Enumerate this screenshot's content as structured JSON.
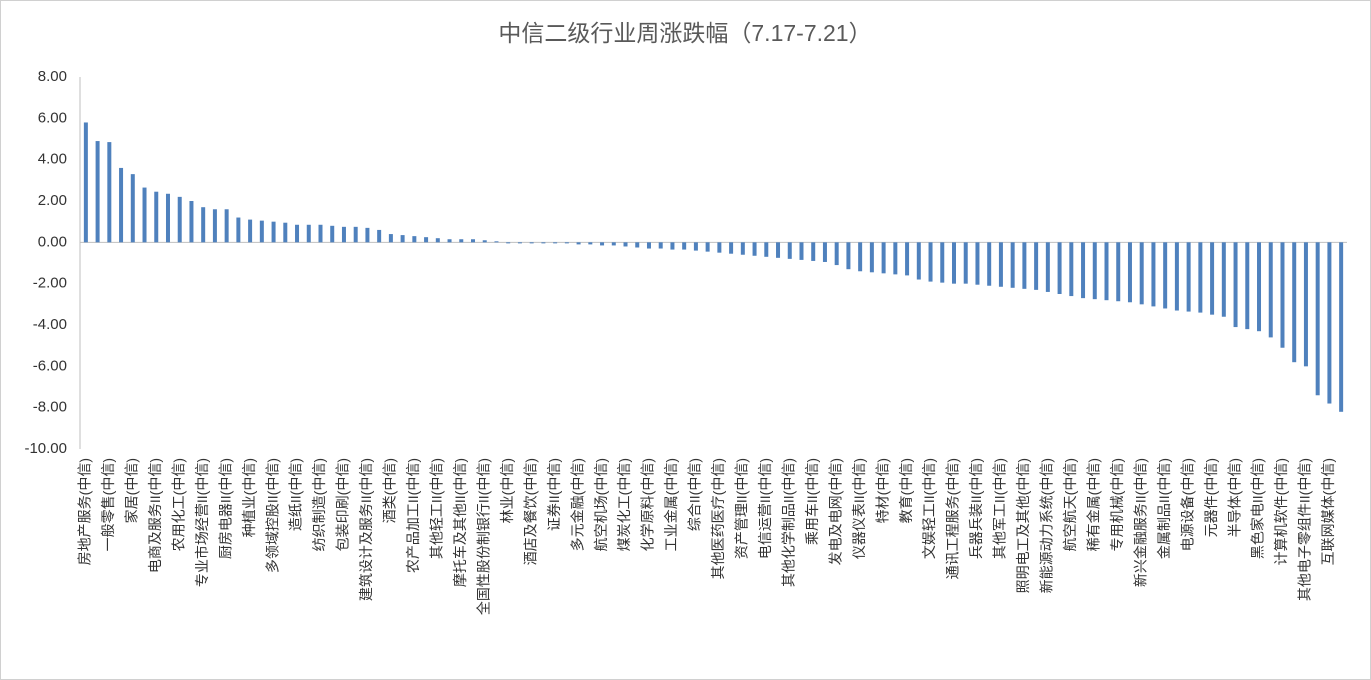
{
  "chart_data": {
    "type": "bar",
    "title": "中信二级行业周涨跌幅（7.17-7.21）",
    "categories": [
      "房地产服务(中信)",
      null,
      "一般零售(中信)",
      null,
      "家居(中信)",
      null,
      "电商及服务II(中信)",
      null,
      "农用化工(中信)",
      null,
      "专业市场经营II(中信)",
      null,
      "厨房电器II(中信)",
      null,
      "种植业(中信)",
      null,
      "多领域控股II(中信)",
      null,
      "造纸II(中信)",
      null,
      "纺织制造(中信)",
      null,
      "包装印刷(中信)",
      null,
      "建筑设计及服务II(中信)",
      null,
      "酒类(中信)",
      null,
      "农产品加工II(中信)",
      null,
      "其他轻工II(中信)",
      null,
      "摩托车及其他II(中信)",
      null,
      "全国性股份制银行II(中信)",
      null,
      "林业(中信)",
      null,
      "酒店及餐饮(中信)",
      null,
      "证券II(中信)",
      null,
      "多元金融(中信)",
      null,
      "航空机场(中信)",
      null,
      "煤炭化工(中信)",
      null,
      "化学原料(中信)",
      null,
      "工业金属(中信)",
      null,
      "综合II(中信)",
      null,
      "其他医药医疗(中信)",
      null,
      "资产管理II(中信)",
      null,
      "电信运营II(中信)",
      null,
      "其他化学制品II(中信)",
      null,
      "乘用车II(中信)",
      null,
      "发电及电网(中信)",
      null,
      "仪器仪表II(中信)",
      null,
      "特材(中信)",
      null,
      "教育(中信)",
      null,
      "文娱轻工II(中信)",
      null,
      "通讯工程服务(中信)",
      null,
      "兵器兵装II(中信)",
      null,
      "其他军工II(中信)",
      null,
      "照明电工及其他(中信)",
      null,
      "新能源动力系统(中信)",
      null,
      "航空航天(中信)",
      null,
      "稀有金属(中信)",
      null,
      "专用机械(中信)",
      null,
      "新兴金融服务II(中信)",
      null,
      "金属制品II(中信)",
      null,
      "电源设备(中信)",
      null,
      "元器件(中信)",
      null,
      "半导体(中信)",
      null,
      "黑色家电II(中信)",
      null,
      "计算机软件(中信)",
      null,
      "其他电子零组件II(中信)",
      null,
      "互联网媒体(中信)",
      null
    ],
    "values": [
      5.8,
      4.9,
      4.85,
      3.6,
      3.3,
      2.65,
      2.45,
      2.35,
      2.2,
      2.0,
      1.7,
      1.6,
      1.6,
      1.2,
      1.1,
      1.05,
      1.0,
      0.95,
      0.85,
      0.85,
      0.85,
      0.8,
      0.75,
      0.75,
      0.7,
      0.6,
      0.4,
      0.35,
      0.3,
      0.25,
      0.2,
      0.15,
      0.15,
      0.15,
      0.1,
      0.05,
      -0.05,
      -0.05,
      -0.05,
      -0.05,
      -0.05,
      -0.05,
      -0.1,
      -0.1,
      -0.15,
      -0.15,
      -0.2,
      -0.25,
      -0.3,
      -0.3,
      -0.35,
      -0.35,
      -0.4,
      -0.45,
      -0.5,
      -0.55,
      -0.6,
      -0.65,
      -0.7,
      -0.75,
      -0.8,
      -0.85,
      -0.9,
      -0.95,
      -1.1,
      -1.3,
      -1.4,
      -1.45,
      -1.5,
      -1.55,
      -1.6,
      -1.8,
      -1.9,
      -1.95,
      -2.0,
      -2.0,
      -2.05,
      -2.1,
      -2.15,
      -2.2,
      -2.25,
      -2.3,
      -2.4,
      -2.5,
      -2.6,
      -2.7,
      -2.75,
      -2.8,
      -2.85,
      -2.9,
      -3.0,
      -3.1,
      -3.2,
      -3.3,
      -3.35,
      -3.4,
      -3.5,
      -3.6,
      -4.1,
      -4.2,
      -4.3,
      -4.6,
      -5.1,
      -5.8,
      -6.0,
      -7.4,
      -7.8,
      -8.2
    ],
    "color": "#4f81bd",
    "ylim": [
      -10,
      8
    ],
    "yticks": [
      {
        "value": -10,
        "label": "-10.00"
      },
      {
        "value": -8,
        "label": "-8.00"
      },
      {
        "value": -6,
        "label": "-6.00"
      },
      {
        "value": -4,
        "label": "-4.00"
      },
      {
        "value": -2,
        "label": "-2.00"
      },
      {
        "value": 0,
        "label": "0.00"
      },
      {
        "value": 2,
        "label": "2.00"
      },
      {
        "value": 4,
        "label": "4.00"
      },
      {
        "value": 6,
        "label": "6.00"
      },
      {
        "value": 8,
        "label": "8.00"
      }
    ],
    "grid": false
  }
}
